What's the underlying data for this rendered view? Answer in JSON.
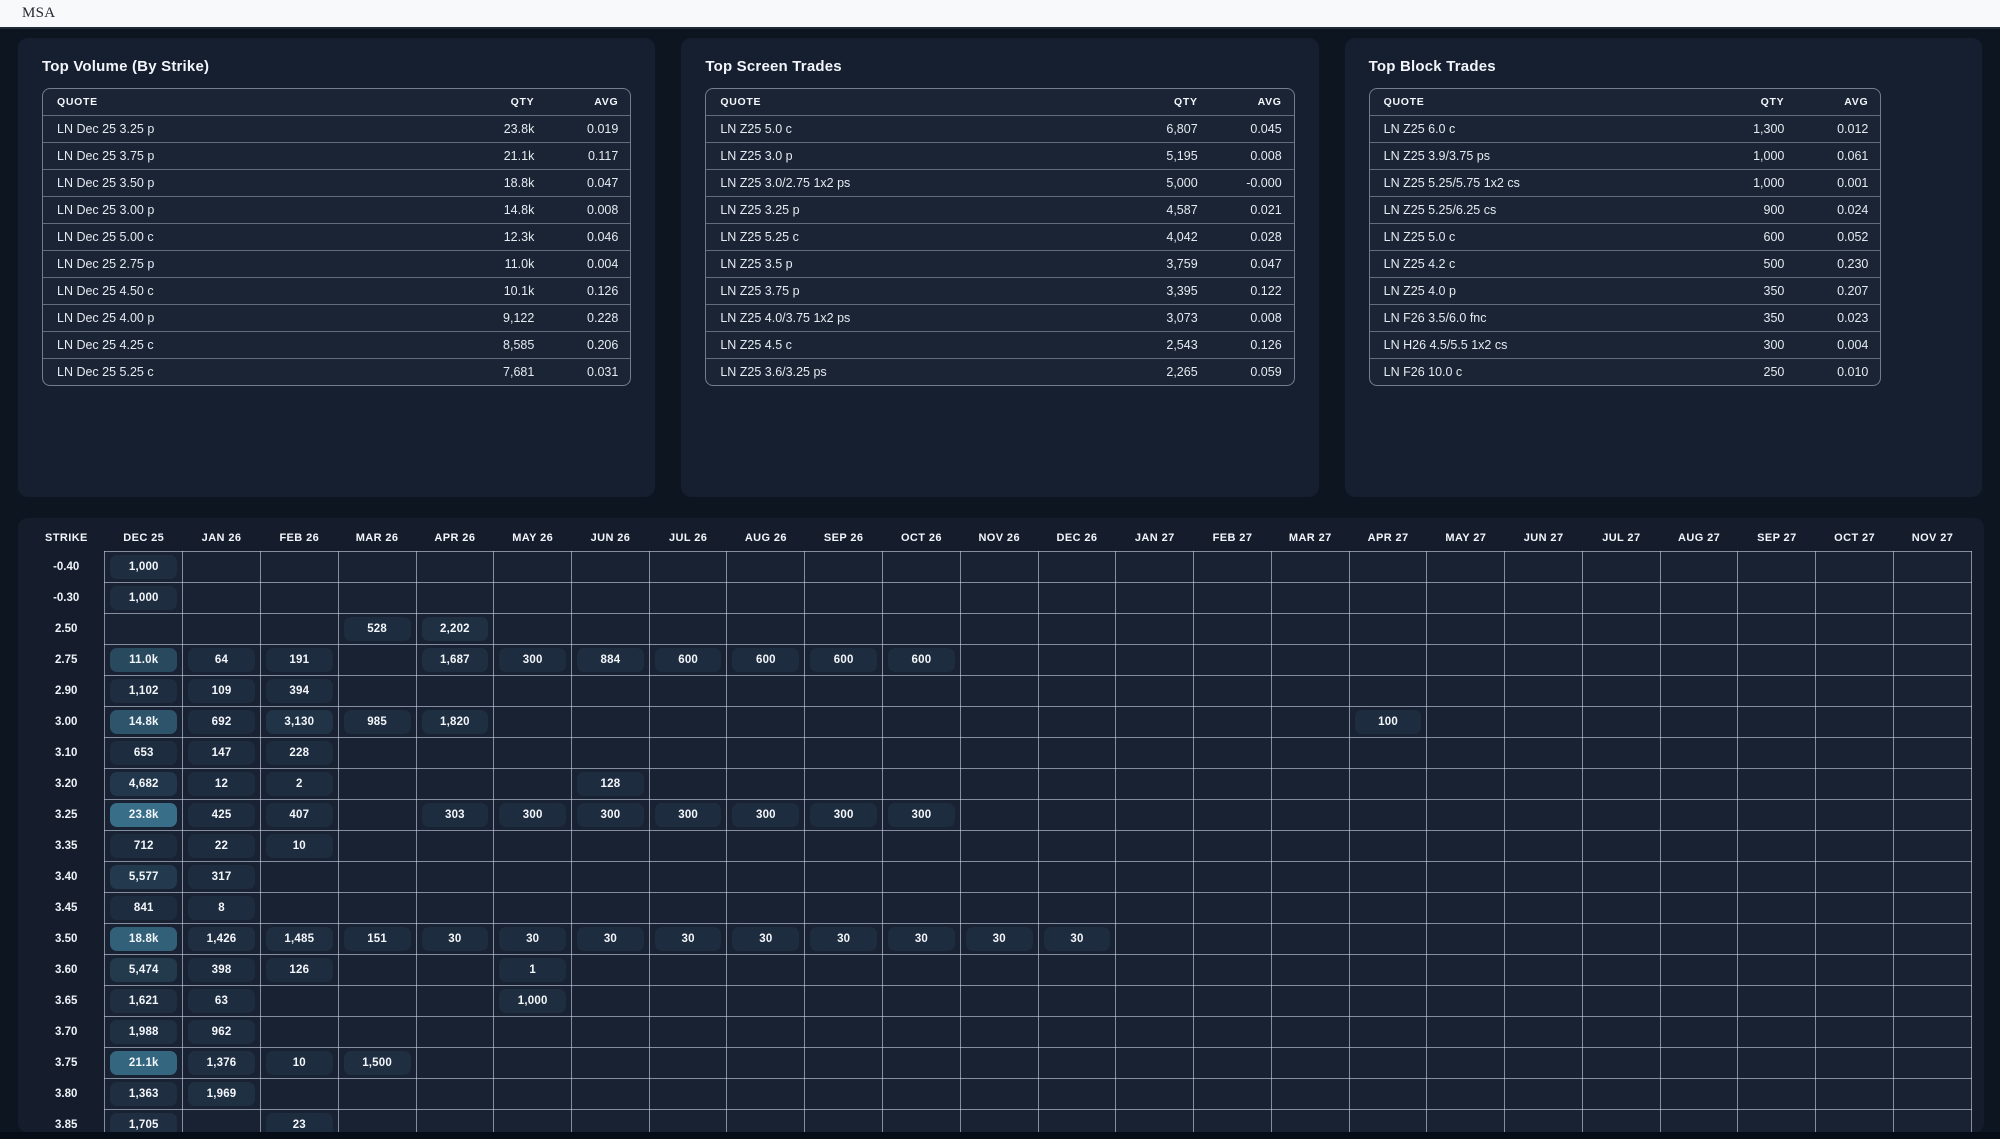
{
  "topbar": {
    "title": "MSA"
  },
  "panels": [
    {
      "title": "Top Volume (By Strike)",
      "columns": [
        "QUOTE",
        "QTY",
        "AVG"
      ],
      "rows": [
        [
          "LN Dec 25 3.25 p",
          "23.8k",
          "0.019"
        ],
        [
          "LN Dec 25 3.75 p",
          "21.1k",
          "0.117"
        ],
        [
          "LN Dec 25 3.50 p",
          "18.8k",
          "0.047"
        ],
        [
          "LN Dec 25 3.00 p",
          "14.8k",
          "0.008"
        ],
        [
          "LN Dec 25 5.00 c",
          "12.3k",
          "0.046"
        ],
        [
          "LN Dec 25 2.75 p",
          "11.0k",
          "0.004"
        ],
        [
          "LN Dec 25 4.50 c",
          "10.1k",
          "0.126"
        ],
        [
          "LN Dec 25 4.00 p",
          "9,122",
          "0.228"
        ],
        [
          "LN Dec 25 4.25 c",
          "8,585",
          "0.206"
        ],
        [
          "LN Dec 25 5.25 c",
          "7,681",
          "0.031"
        ]
      ]
    },
    {
      "title": "Top Screen Trades",
      "columns": [
        "QUOTE",
        "QTY",
        "AVG"
      ],
      "rows": [
        [
          "LN Z25 5.0 c",
          "6,807",
          "0.045"
        ],
        [
          "LN Z25 3.0 p",
          "5,195",
          "0.008"
        ],
        [
          "LN Z25 3.0/2.75 1x2 ps",
          "5,000",
          "-0.000"
        ],
        [
          "LN Z25 3.25 p",
          "4,587",
          "0.021"
        ],
        [
          "LN Z25 5.25 c",
          "4,042",
          "0.028"
        ],
        [
          "LN Z25 3.5 p",
          "3,759",
          "0.047"
        ],
        [
          "LN Z25 3.75 p",
          "3,395",
          "0.122"
        ],
        [
          "LN Z25 4.0/3.75 1x2 ps",
          "3,073",
          "0.008"
        ],
        [
          "LN Z25 4.5 c",
          "2,543",
          "0.126"
        ],
        [
          "LN Z25 3.6/3.25 ps",
          "2,265",
          "0.059"
        ]
      ]
    },
    {
      "title": "Top Block Trades",
      "columns": [
        "QUOTE",
        "QTY",
        "AVG"
      ],
      "rows": [
        [
          "LN Z25 6.0 c",
          "1,300",
          "0.012"
        ],
        [
          "LN Z25 3.9/3.75 ps",
          "1,000",
          "0.061"
        ],
        [
          "LN Z25 5.25/5.75 1x2 cs",
          "1,000",
          "0.001"
        ],
        [
          "LN Z25 5.25/6.25 cs",
          "900",
          "0.024"
        ],
        [
          "LN Z25 5.0 c",
          "600",
          "0.052"
        ],
        [
          "LN Z25 4.2 c",
          "500",
          "0.230"
        ],
        [
          "LN Z25 4.0 p",
          "350",
          "0.207"
        ],
        [
          "LN F26 3.5/6.0 fnc",
          "350",
          "0.023"
        ],
        [
          "LN H26 4.5/5.5 1x2 cs",
          "300",
          "0.004"
        ],
        [
          "LN F26 10.0 c",
          "250",
          "0.010"
        ]
      ]
    }
  ],
  "matrix": {
    "strike_header": "STRIKE",
    "columns": [
      "DEC 25",
      "JAN 26",
      "FEB 26",
      "MAR 26",
      "APR 26",
      "MAY 26",
      "JUN 26",
      "JUL 26",
      "AUG 26",
      "SEP 26",
      "OCT 26",
      "NOV 26",
      "DEC 26",
      "JAN 27",
      "FEB 27",
      "MAR 27",
      "APR 27",
      "MAY 27",
      "JUN 27",
      "JUL 27",
      "AUG 27",
      "SEP 27",
      "OCT 27",
      "NOV 27"
    ],
    "rows": [
      {
        "strike": "-0.40",
        "cells": {
          "0": "1,000"
        }
      },
      {
        "strike": "-0.30",
        "cells": {
          "0": "1,000"
        }
      },
      {
        "strike": "2.50",
        "cells": {
          "3": "528",
          "4": "2,202"
        }
      },
      {
        "strike": "2.75",
        "cells": {
          "0": "11.0k",
          "1": "64",
          "2": "191",
          "4": "1,687",
          "5": "300",
          "6": "884",
          "7": "600",
          "8": "600",
          "9": "600",
          "10": "600"
        }
      },
      {
        "strike": "2.90",
        "cells": {
          "0": "1,102",
          "1": "109",
          "2": "394"
        }
      },
      {
        "strike": "3.00",
        "cells": {
          "0": "14.8k",
          "1": "692",
          "2": "3,130",
          "3": "985",
          "4": "1,820",
          "16": "100"
        }
      },
      {
        "strike": "3.10",
        "cells": {
          "0": "653",
          "1": "147",
          "2": "228"
        }
      },
      {
        "strike": "3.20",
        "cells": {
          "0": "4,682",
          "1": "12",
          "2": "2",
          "6": "128"
        }
      },
      {
        "strike": "3.25",
        "cells": {
          "0": "23.8k",
          "1": "425",
          "2": "407",
          "4": "303",
          "5": "300",
          "6": "300",
          "7": "300",
          "8": "300",
          "9": "300",
          "10": "300"
        }
      },
      {
        "strike": "3.35",
        "cells": {
          "0": "712",
          "1": "22",
          "2": "10"
        }
      },
      {
        "strike": "3.40",
        "cells": {
          "0": "5,577",
          "1": "317"
        }
      },
      {
        "strike": "3.45",
        "cells": {
          "0": "841",
          "1": "8"
        }
      },
      {
        "strike": "3.50",
        "cells": {
          "0": "18.8k",
          "1": "1,426",
          "2": "1,485",
          "3": "151",
          "4": "30",
          "5": "30",
          "6": "30",
          "7": "30",
          "8": "30",
          "9": "30",
          "10": "30",
          "11": "30",
          "12": "30"
        }
      },
      {
        "strike": "3.60",
        "cells": {
          "0": "5,474",
          "1": "398",
          "2": "126",
          "5": "1"
        }
      },
      {
        "strike": "3.65",
        "cells": {
          "0": "1,621",
          "1": "63",
          "5": "1,000"
        }
      },
      {
        "strike": "3.70",
        "cells": {
          "0": "1,988",
          "1": "962"
        }
      },
      {
        "strike": "3.75",
        "cells": {
          "0": "21.1k",
          "1": "1,376",
          "2": "10",
          "3": "1,500"
        }
      },
      {
        "strike": "3.80",
        "cells": {
          "0": "1,363",
          "1": "1,969"
        }
      },
      {
        "strike": "3.85",
        "cells": {
          "0": "1,705",
          "2": "23"
        }
      }
    ]
  },
  "colors": {
    "page_bg": "#0d1521",
    "panel_bg": "#161f2f",
    "cell_bg": "#192232",
    "pill_low": "#1d2a3c",
    "pill_high": "#386e88",
    "topbar_bg": "#f8f9fb"
  }
}
